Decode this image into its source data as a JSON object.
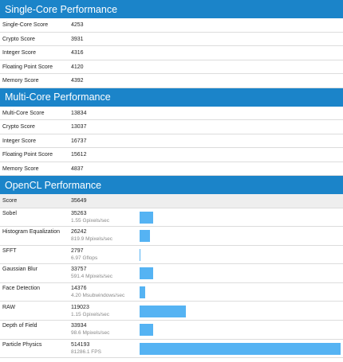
{
  "sections": [
    {
      "title": "Single-Core Performance",
      "rows": [
        {
          "label": "Single-Core Score",
          "score": 4253
        },
        {
          "label": "Crypto Score",
          "score": 3931
        },
        {
          "label": "Integer Score",
          "score": 4316
        },
        {
          "label": "Floating Point Score",
          "score": 4120
        },
        {
          "label": "Memory Score",
          "score": 4392
        }
      ]
    },
    {
      "title": "Multi-Core Performance",
      "rows": [
        {
          "label": "Multi-Core Score",
          "score": 13834
        },
        {
          "label": "Crypto Score",
          "score": 13037
        },
        {
          "label": "Integer Score",
          "score": 16737
        },
        {
          "label": "Floating Point Score",
          "score": 15612
        },
        {
          "label": "Memory Score",
          "score": 4837
        }
      ]
    },
    {
      "title": "OpenCL Performance",
      "summary": {
        "label": "Score",
        "score": 35649
      },
      "rows": [
        {
          "label": "Sobel",
          "score": 35263,
          "detail": "1.55 Gpixels/sec"
        },
        {
          "label": "Histogram Equalization",
          "score": 26242,
          "detail": "819.9 Mpixels/sec"
        },
        {
          "label": "SFFT",
          "score": 2797,
          "detail": "6.97 Gflops"
        },
        {
          "label": "Gaussian Blur",
          "score": 33757,
          "detail": "591.4 Mpixels/sec"
        },
        {
          "label": "Face Detection",
          "score": 14376,
          "detail": "4.20 Msubwindows/sec"
        },
        {
          "label": "RAW",
          "score": 119023,
          "detail": "1.15 Gpixels/sec"
        },
        {
          "label": "Depth of Field",
          "score": 33934,
          "detail": "98.6 Mpixels/sec"
        },
        {
          "label": "Particle Physics",
          "score": 514193,
          "detail": "81286.1 FPS"
        }
      ]
    }
  ]
}
